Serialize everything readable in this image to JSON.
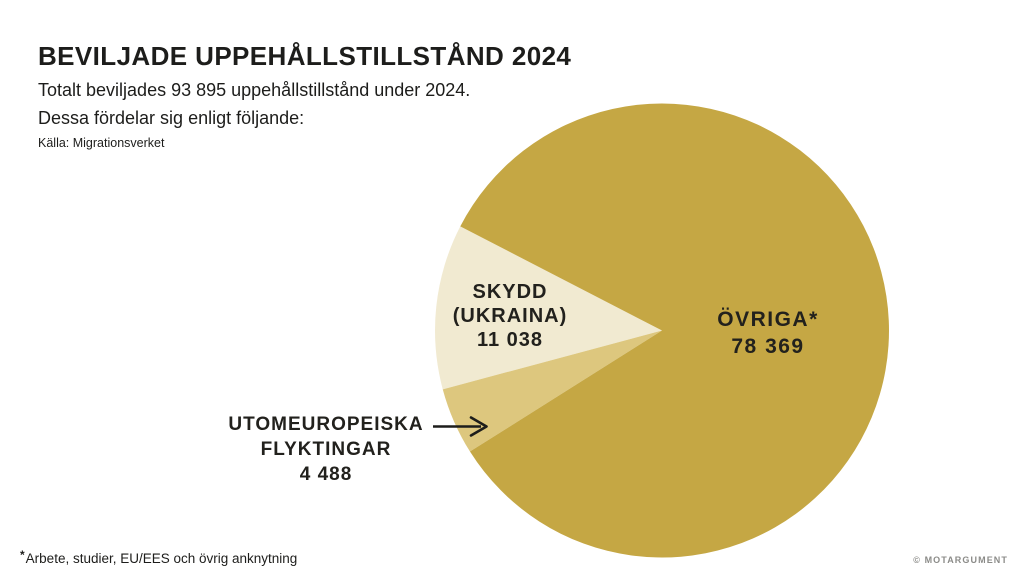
{
  "header": {
    "title": "BEVILJADE UPPEHÅLLSTILLSTÅND 2024",
    "subtitle_line1": "Totalt beviljades 93 895 uppehållstillstånd under 2024.",
    "subtitle_line2": "Dessa fördelar sig enligt följande:",
    "source": "Källa: Migrationsverket"
  },
  "chart_data": {
    "type": "pie",
    "title": "Beviljade uppehållstillstånd 2024",
    "total": 93895,
    "slices": [
      {
        "label": "SKYDD (UKRAINA)",
        "value": 11038,
        "color": "#f1ead1"
      },
      {
        "label": "UTOMEUROPEISKA FLYKTINGAR",
        "value": 4488,
        "color": "#ddc77e"
      },
      {
        "label": "ÖVRIGA*",
        "value": 78369,
        "color": "#c5a744"
      }
    ],
    "start_angle_deg": 152.7,
    "legend": "labels-on-chart"
  },
  "chart_labels": {
    "skydd": [
      "SKYDD",
      "(UKRAINA)",
      "11 038"
    ],
    "ovriga": [
      "ÖVRIGA*",
      "78 369"
    ],
    "utomeuropeiska": [
      "UTOMEUROPEISKA",
      "FLYKTINGAR",
      "4 488"
    ]
  },
  "footer": {
    "footnote_symbol": "*",
    "footnote_text": "Arbete, studier, EU/EES och övrig anknytning",
    "credit": "© MOTARGUMENT"
  },
  "colors": {
    "background": "#ffffff",
    "text": "#1d1d1b",
    "credit_gray": "#8b8b88",
    "gold": "#c5a744",
    "tan": "#ddc77e",
    "cream": "#f1ead1"
  }
}
